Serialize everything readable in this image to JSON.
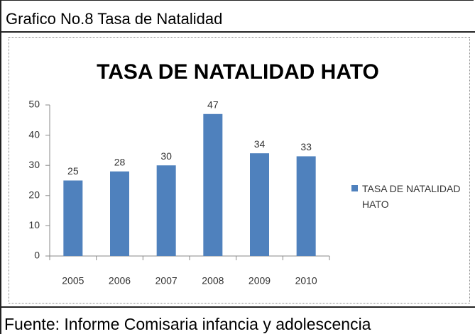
{
  "caption": "Grafico No.8 Tasa de Natalidad",
  "source": "Fuente: Informe Comisaria infancia y adolescencia",
  "chart_data": {
    "type": "bar",
    "title": "TASA DE NATALIDAD HATO",
    "categories": [
      "2005",
      "2006",
      "2007",
      "2008",
      "2009",
      "2010"
    ],
    "series": [
      {
        "name": "TASA DE NATALIDAD HATO",
        "color": "#4f81bd",
        "values": [
          25,
          28,
          30,
          47,
          34,
          33
        ]
      }
    ],
    "ylim": [
      0,
      50
    ],
    "yticks": [
      0,
      10,
      20,
      30,
      40,
      50
    ],
    "grid": false,
    "legend": "right"
  }
}
